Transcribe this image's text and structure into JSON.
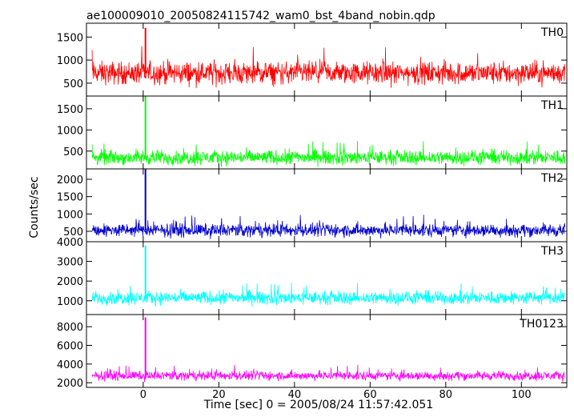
{
  "chart_data": {
    "type": "line",
    "title": "ae100009010_20050824115742_wam0_bst_4band_nobin.qdp",
    "xlabel": "Time [sec] 0 = 2005/08/24 11:57:42.051",
    "ylabel": "Counts/sec",
    "xlim": [
      -15,
      112
    ],
    "x_ticks": [
      0,
      20,
      40,
      60,
      80,
      100
    ],
    "x_tick_labels": [
      "0",
      "20",
      "40",
      "60",
      "80",
      "100"
    ],
    "grid": false,
    "panels": [
      {
        "name": "TH0",
        "color": "#ff0000",
        "ylim": [
          220,
          1800
        ],
        "y_ticks": [
          500,
          1000,
          1500
        ],
        "y_tick_labels": [
          "500",
          "1000",
          "1500"
        ],
        "baseline": 720,
        "noise_amplitude": 330,
        "spike": {
          "x": 0.6,
          "y": 1700
        }
      },
      {
        "name": "TH1",
        "color": "#00ff00",
        "ylim": [
          80,
          1800
        ],
        "y_ticks": [
          500,
          1000,
          1500
        ],
        "y_tick_labels": [
          "500",
          "1000",
          "1500"
        ],
        "baseline": 350,
        "noise_amplitude": 230,
        "spike": {
          "x": 0.6,
          "y": 1800
        }
      },
      {
        "name": "TH2",
        "color": "#0000cc",
        "ylim": [
          200,
          2300
        ],
        "y_ticks": [
          500,
          1000,
          1500,
          2000
        ],
        "y_tick_labels": [
          "500",
          "1000",
          "1500",
          "2000"
        ],
        "baseline": 530,
        "noise_amplitude": 250,
        "spike": {
          "x": 0.6,
          "y": 2300
        }
      },
      {
        "name": "TH3",
        "color": "#00ffff",
        "ylim": [
          300,
          4000
        ],
        "y_ticks": [
          1000,
          2000,
          3000,
          4000
        ],
        "y_tick_labels": [
          "1000",
          "2000",
          "3000",
          "4000"
        ],
        "baseline": 1150,
        "noise_amplitude": 450,
        "spike": {
          "x": 0.6,
          "y": 3800
        }
      },
      {
        "name": "TH0123",
        "color": "#ff00ff",
        "ylim": [
          1500,
          9300
        ],
        "y_ticks": [
          2000,
          4000,
          6000,
          8000
        ],
        "y_tick_labels": [
          "2000",
          "4000",
          "6000",
          "8000"
        ],
        "baseline": 2750,
        "noise_amplitude": 650,
        "spike": {
          "x": 0.6,
          "y": 9000
        }
      }
    ]
  }
}
